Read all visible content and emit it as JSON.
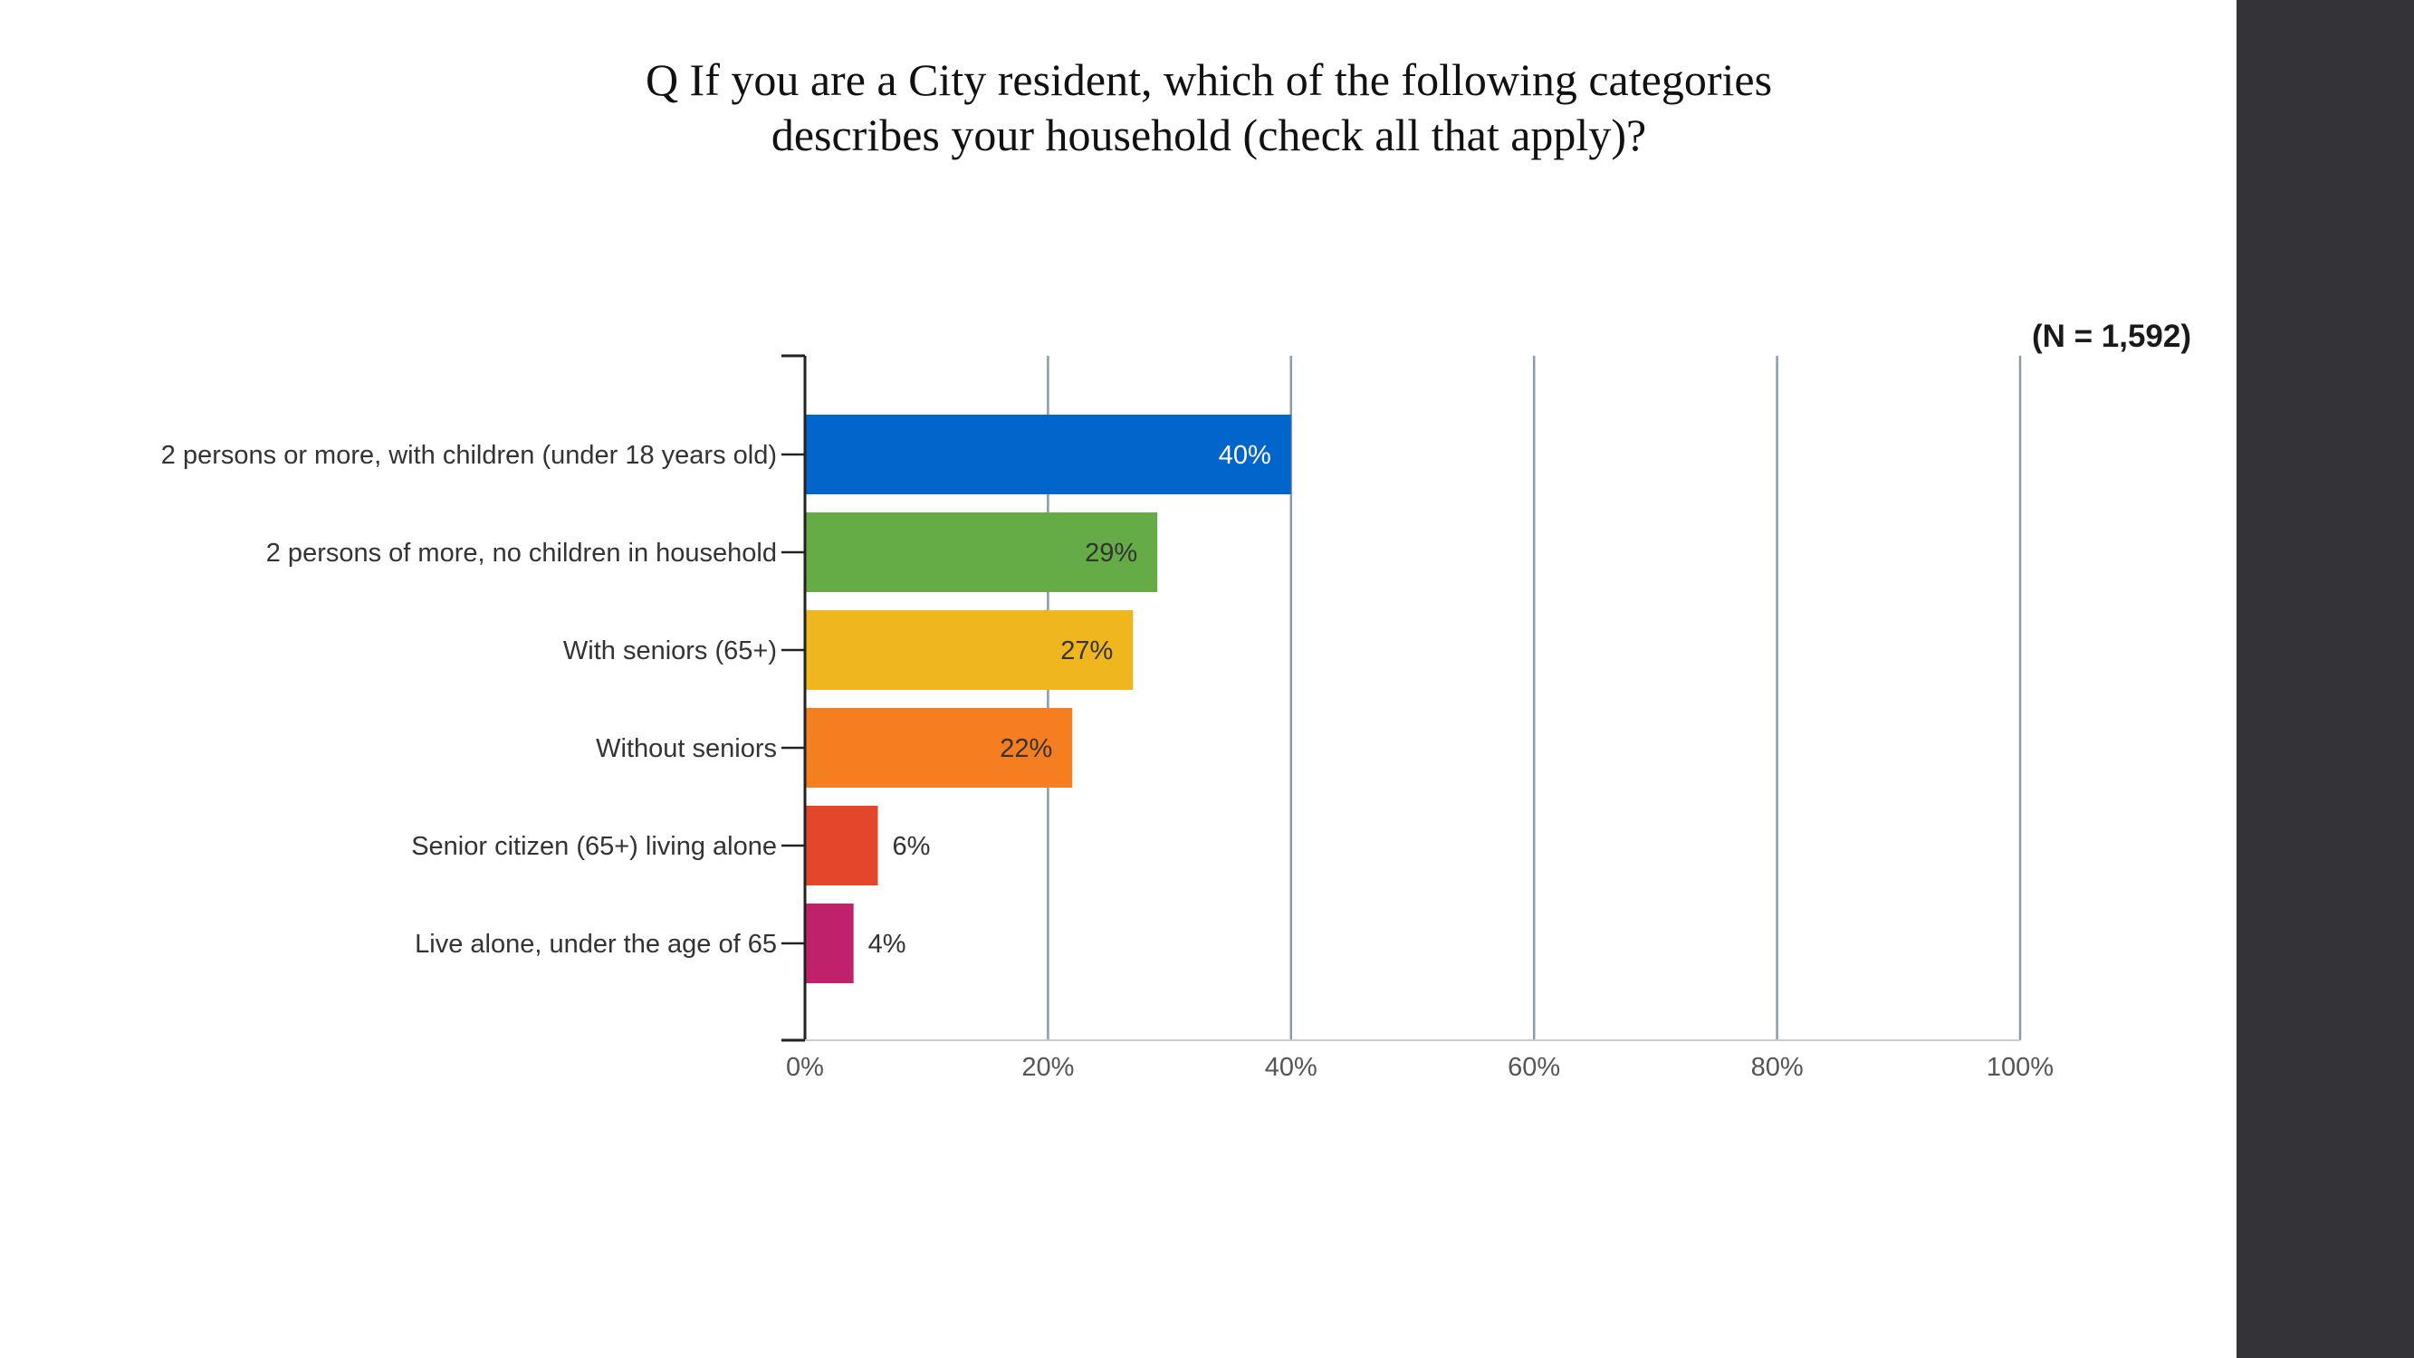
{
  "slide": {
    "title_line1": "Q If you are a City resident, which of the following categories",
    "title_line2": "describes your household (check all that apply)?",
    "sample_note": "(N = 1,592)"
  },
  "chart_data": {
    "type": "bar",
    "orientation": "horizontal",
    "title": "Q If you are a City resident, which of the following categories describes your household (check all that apply)?",
    "annotation": "(N = 1,592)",
    "categories": [
      "2 persons or more, with children (under 18 years old)",
      "2 persons of more, no children in household",
      "With seniors (65+)",
      "Without seniors",
      "Senior citizen (65+) living alone",
      "Live alone, under the age of 65"
    ],
    "values": [
      40,
      29,
      27,
      22,
      6,
      4
    ],
    "value_labels": [
      "40%",
      "29%",
      "27%",
      "22%",
      "6%",
      "4%"
    ],
    "colors": [
      "#0066cc",
      "#65ac46",
      "#f0b61e",
      "#f57e20",
      "#e4462b",
      "#c0216b"
    ],
    "value_label_colors": [
      "#ffffff",
      "#333333",
      "#333333",
      "#333333",
      "#333333",
      "#333333"
    ],
    "xlim": [
      0,
      100
    ],
    "xticks": [
      0,
      20,
      40,
      60,
      80,
      100
    ],
    "xtick_labels": [
      "0%",
      "20%",
      "40%",
      "60%",
      "80%",
      "100%"
    ],
    "grid": true,
    "legend": "none"
  }
}
